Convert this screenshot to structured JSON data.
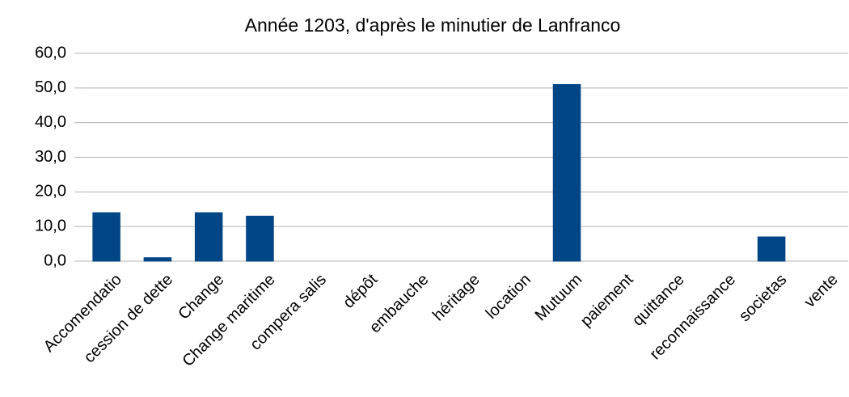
{
  "chart_data": {
    "type": "bar",
    "title": "Année 1203, d'après le minutier de Lanfranco",
    "categories": [
      "Accomendatio",
      "cession de dette",
      "Change",
      "Change maritime",
      "compera salis",
      "dépôt",
      "embauche",
      "héritage",
      "location",
      "Mutuum",
      "paiement",
      "quittance",
      "reconnaissance",
      "societas",
      "vente"
    ],
    "values": [
      14,
      1,
      14,
      13,
      0,
      0,
      0,
      0,
      0,
      51,
      0,
      0,
      0,
      7,
      0
    ],
    "color": "#004586",
    "ylim": [
      0,
      60
    ],
    "yticks": [
      {
        "value": 0,
        "label": "0,0"
      },
      {
        "value": 10,
        "label": "10,0"
      },
      {
        "value": 20,
        "label": "20,0"
      },
      {
        "value": 30,
        "label": "30,0"
      },
      {
        "value": 40,
        "label": "40,0"
      },
      {
        "value": 50,
        "label": "50,0"
      },
      {
        "value": 60,
        "label": "60,0"
      }
    ],
    "grid": true
  }
}
